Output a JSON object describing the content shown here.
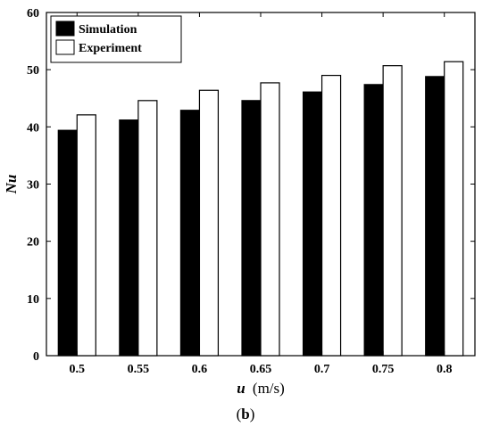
{
  "chart_data": {
    "type": "bar",
    "categories": [
      "0.5",
      "0.55",
      "0.6",
      "0.65",
      "0.7",
      "0.75",
      "0.8"
    ],
    "series": [
      {
        "name": "Simulation",
        "values": [
          39.4,
          41.2,
          42.9,
          44.6,
          46.1,
          47.4,
          48.8
        ],
        "color": "#000000"
      },
      {
        "name": "Experiment",
        "values": [
          42.1,
          44.6,
          46.4,
          47.7,
          49.0,
          50.7,
          51.4
        ],
        "color": "#ffffff"
      }
    ],
    "xlabel": "u",
    "xlabel_unit": "(m/s)",
    "ylabel": "Nu",
    "ylim": [
      0,
      60
    ],
    "yticks": [
      "0",
      "10",
      "20",
      "30",
      "40",
      "50",
      "60"
    ],
    "grid": false,
    "legend_position": "top-left"
  },
  "caption": {
    "open": "(",
    "letter": "b",
    "close": ")"
  }
}
